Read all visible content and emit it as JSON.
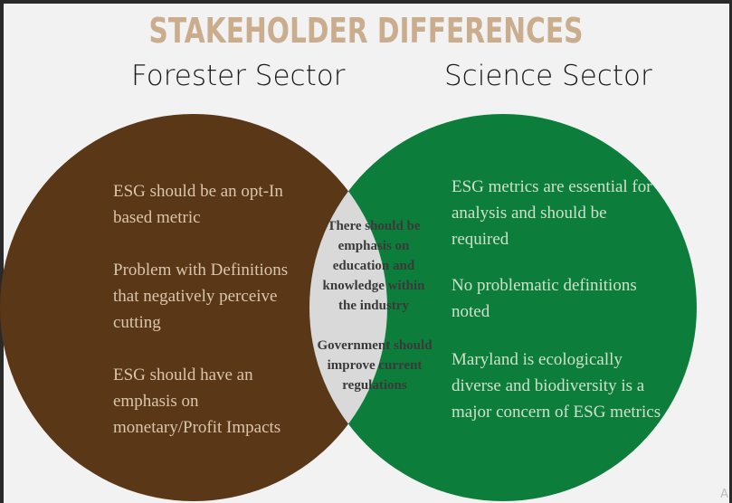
{
  "title": "STAKEHOLDER DIFFERENCES",
  "sets": {
    "left": {
      "label": "Forester Sector",
      "color": "#5a3717",
      "points": [
        "ESG should be an opt-In based metric",
        "Problem with Definitions that negatively perceive cutting",
        "ESG should have an emphasis on monetary/Profit Impacts"
      ]
    },
    "right": {
      "label": "Science Sector",
      "color": "#0c7d3a",
      "points": [
        "ESG  metrics are essential for analysis and should be required",
        "No problematic definitions noted",
        "Maryland is ecologically diverse and biodiversity is a major concern of ESG metrics"
      ]
    },
    "overlap": {
      "color": "#d9d9d9",
      "points": [
        "There should be emphasis on education and knowledge within the industry",
        "Government should improve current regulations"
      ]
    }
  },
  "corner_mark": "A"
}
